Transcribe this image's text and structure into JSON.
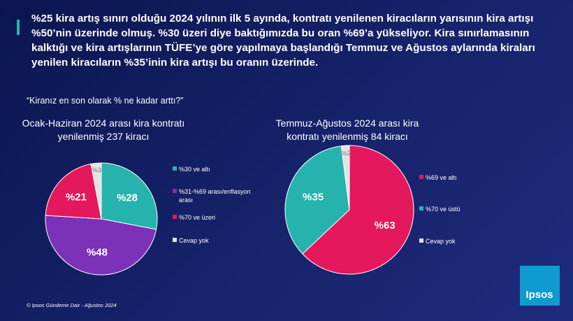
{
  "header": {
    "lines": [
      "%25 kira artış sınırı olduğu 2024 yılının ilk 5 ayında, kontratı yenilenen kiracıların yarısının kira artışı",
      "%50’nin üzerinde olmuş.  %30 üzeri diye baktığımızda bu oran %69’a yükseliyor. Kira sınırlamasının",
      "kalktığı ve kira artışlarının TÜFE’ye göre yapılmaya başlandığı Temmuz ve Ağustos aylarında kiraları",
      "yenilen kiracıların %35’inin kira artışı bu oranın üzerinde."
    ]
  },
  "question": "“Kiranız en son olarak % ne kadar arttı?”",
  "footer": "© Ipsos Gündeme Dair - Ağustos 2024",
  "logo": "Ipsos",
  "chart_data": [
    {
      "type": "pie",
      "title": [
        "Ocak-Haziran 2024 arası kira kontratı",
        "yenilenmiş 237 kiracı"
      ],
      "categories": [
        "%30 ve altı",
        "%31-%69 arası/enflasyon arası",
        "%70 ve üzeri",
        "Cevap yok"
      ],
      "values": [
        28,
        48,
        21,
        3
      ],
      "value_labels": [
        "%28",
        "%48",
        "%21",
        "%3"
      ],
      "colors": [
        "#27b3ad",
        "#7b31b8",
        "#e5175d",
        "#e3e3e3"
      ]
    },
    {
      "type": "pie",
      "title": [
        "Temmuz-Ağustos 2024 arası kira",
        "kontratı yenilenmiş 84 kiracı"
      ],
      "categories": [
        "%69 ve altı",
        "%70 ve üstü",
        "Cevap yok"
      ],
      "values": [
        63,
        35,
        2
      ],
      "value_labels": [
        "%63",
        "%35",
        "%2"
      ],
      "colors": [
        "#e5175d",
        "#27b3ad",
        "#e3e3e3"
      ]
    }
  ]
}
